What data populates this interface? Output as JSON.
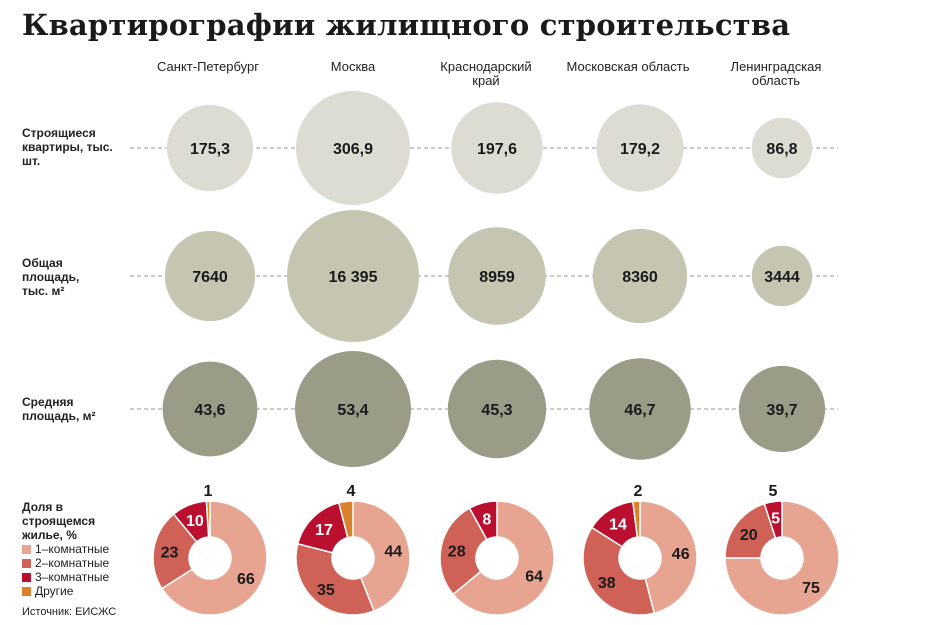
{
  "title": "Квартирографии жилищного строительства",
  "source": "Источник: ЕИСЖС",
  "colors": {
    "row1": "#dcdcd3",
    "row2": "#c5c5b2",
    "row3": "#9b9c88",
    "one_room": "#e7a491",
    "two_room": "#cf6157",
    "three_room": "#ba0f2f",
    "other": "#d9822b"
  },
  "regions": [
    "Санкт-Петербург",
    "Москва",
    "Краснодарский край",
    "Московская область",
    "Ленинградская область"
  ],
  "rows": [
    {
      "label": "Строящиеся квартиры, тыс. шт."
    },
    {
      "label": "Общая площадь, тыс. м²"
    },
    {
      "label": "Средняя площадь, м²"
    }
  ],
  "legend": {
    "title": "Доля в строящемся жилье, %",
    "items": [
      "1–комнатные",
      "2–комнатные",
      "3–комнатные",
      "Другие"
    ]
  },
  "chart_data": [
    {
      "type": "bubble",
      "row": "Строящиеся квартиры, тыс. шт.",
      "categories": [
        "Санкт-Петербург",
        "Москва",
        "Краснодарский край",
        "Московская область",
        "Ленинградская область"
      ],
      "values": [
        175.3,
        306.9,
        197.6,
        179.2,
        86.8
      ],
      "labels": [
        "175,3",
        "306,9",
        "197,6",
        "179,2",
        "86,8"
      ]
    },
    {
      "type": "bubble",
      "row": "Общая площадь, тыс. м²",
      "categories": [
        "Санкт-Петербург",
        "Москва",
        "Краснодарский край",
        "Московская область",
        "Ленинградская область"
      ],
      "values": [
        7640,
        16395,
        8959,
        8360,
        3444
      ],
      "labels": [
        "7640",
        "16 395",
        "8959",
        "8360",
        "3444"
      ]
    },
    {
      "type": "bubble",
      "row": "Средняя площадь, м²",
      "categories": [
        "Санкт-Петербург",
        "Москва",
        "Краснодарский край",
        "Московская область",
        "Ленинградская область"
      ],
      "values": [
        43.6,
        53.4,
        45.3,
        46.7,
        39.7
      ],
      "labels": [
        "43,6",
        "53,4",
        "45,3",
        "46,7",
        "39,7"
      ]
    },
    {
      "type": "pie",
      "row": "Доля в строящемся жилье, %",
      "categories": [
        "1–комнатные",
        "2–комнатные",
        "3–комнатные",
        "Другие"
      ],
      "series": [
        {
          "name": "Санкт-Петербург",
          "values": [
            66,
            23,
            10,
            1
          ]
        },
        {
          "name": "Москва",
          "values": [
            44,
            35,
            17,
            4
          ]
        },
        {
          "name": "Краснодарский край",
          "values": [
            64,
            28,
            8,
            0
          ]
        },
        {
          "name": "Московская область",
          "values": [
            46,
            38,
            14,
            2
          ]
        },
        {
          "name": "Ленинградская область",
          "values": [
            75,
            20,
            5,
            0
          ]
        }
      ]
    }
  ]
}
